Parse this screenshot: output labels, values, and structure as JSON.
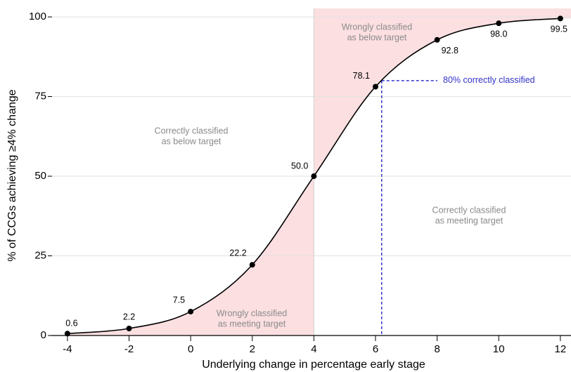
{
  "chart_data": {
    "type": "line",
    "xlabel": "Underlying change in percentage early stage",
    "ylabel": "% of CCGs achieving ≥4% change",
    "x": [
      -4,
      -2,
      0,
      2,
      4,
      6,
      8,
      10,
      12
    ],
    "series": [
      {
        "color": "#000000",
        "values": [
          0.6,
          2.2,
          7.5,
          22.2,
          50,
          78.1,
          92.8,
          98,
          99.5
        ],
        "value_labels": [
          "0.6",
          "2.2",
          "7.5",
          "22.2",
          "50.0",
          "78.1",
          "92.8",
          "98.0",
          "99.5"
        ]
      }
    ],
    "xlim": [
      -4.5,
      12.3
    ],
    "ylim": [
      0,
      102
    ],
    "xticks": [
      -4,
      -2,
      0,
      2,
      4,
      6,
      8,
      10,
      12
    ],
    "yticks": [
      0,
      25,
      50,
      75,
      100
    ],
    "grid": true,
    "shade_color": "#fcdfe1",
    "threshold": {
      "x": 6.2,
      "y": 80,
      "label": "80% correctly classified",
      "color": "#3333cc"
    },
    "annotations": [
      {
        "lines": [
          "Correctly classified",
          "as below target"
        ]
      },
      {
        "lines": [
          "Wrongly classified",
          "as below target"
        ]
      },
      {
        "lines": [
          "Correctly classified",
          "as meeting target"
        ]
      },
      {
        "lines": [
          "Wrongly classified",
          "as meeting target"
        ]
      }
    ]
  }
}
